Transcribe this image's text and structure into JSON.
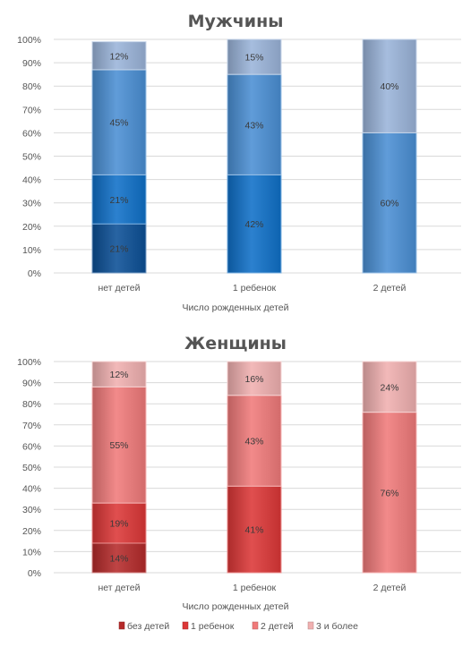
{
  "colors": {
    "men": [
      "#0b4f96",
      "#0f70c8",
      "#4a8fd4",
      "#9ab4d9"
    ],
    "women": [
      "#b52a2a",
      "#dc3737",
      "#f07a7a",
      "#f0b0b0"
    ],
    "grid": "#d9d9d9",
    "text": "#555555"
  },
  "legend": {
    "items": [
      "без детей",
      "1 ребенок",
      "2 детей",
      "3 и более"
    ]
  },
  "chart_data": [
    {
      "type": "bar",
      "stacked": true,
      "percent": true,
      "title": "Мужчины",
      "xlabel": "Число рожденных детей",
      "ylabel": "",
      "ylim": [
        0,
        100
      ],
      "yticks": [
        "0%",
        "10%",
        "20%",
        "30%",
        "40%",
        "50%",
        "60%",
        "70%",
        "80%",
        "90%",
        "100%"
      ],
      "categories": [
        "нет детей",
        "1 ребенок",
        "2 детей"
      ],
      "series": [
        {
          "name": "без детей",
          "values": [
            21,
            0,
            0
          ],
          "labels": [
            "21%",
            "",
            ""
          ]
        },
        {
          "name": "1 ребенок",
          "values": [
            21,
            42,
            0
          ],
          "labels": [
            "21%",
            "42%",
            ""
          ]
        },
        {
          "name": "2 детей",
          "values": [
            45,
            43,
            60
          ],
          "labels": [
            "45%",
            "43%",
            "60%"
          ]
        },
        {
          "name": "3 и более",
          "values": [
            12,
            15,
            40
          ],
          "labels": [
            "12%",
            "15%",
            "40%"
          ]
        }
      ]
    },
    {
      "type": "bar",
      "stacked": true,
      "percent": true,
      "title": "Женщины",
      "xlabel": "Число рожденных детей",
      "ylabel": "",
      "ylim": [
        0,
        100
      ],
      "yticks": [
        "0%",
        "10%",
        "20%",
        "30%",
        "40%",
        "50%",
        "60%",
        "70%",
        "80%",
        "90%",
        "100%"
      ],
      "categories": [
        "нет детей",
        "1 ребенок",
        "2 детей"
      ],
      "series": [
        {
          "name": "без детей",
          "values": [
            14,
            0,
            0
          ],
          "labels": [
            "14%",
            "",
            ""
          ]
        },
        {
          "name": "1 ребенок",
          "values": [
            19,
            41,
            0
          ],
          "labels": [
            "19%",
            "41%",
            ""
          ]
        },
        {
          "name": "2 детей",
          "values": [
            55,
            43,
            76
          ],
          "labels": [
            "55%",
            "43%",
            "76%"
          ]
        },
        {
          "name": "3 и более",
          "values": [
            12,
            16,
            24
          ],
          "labels": [
            "12%",
            "16%",
            "24%"
          ]
        }
      ]
    }
  ]
}
